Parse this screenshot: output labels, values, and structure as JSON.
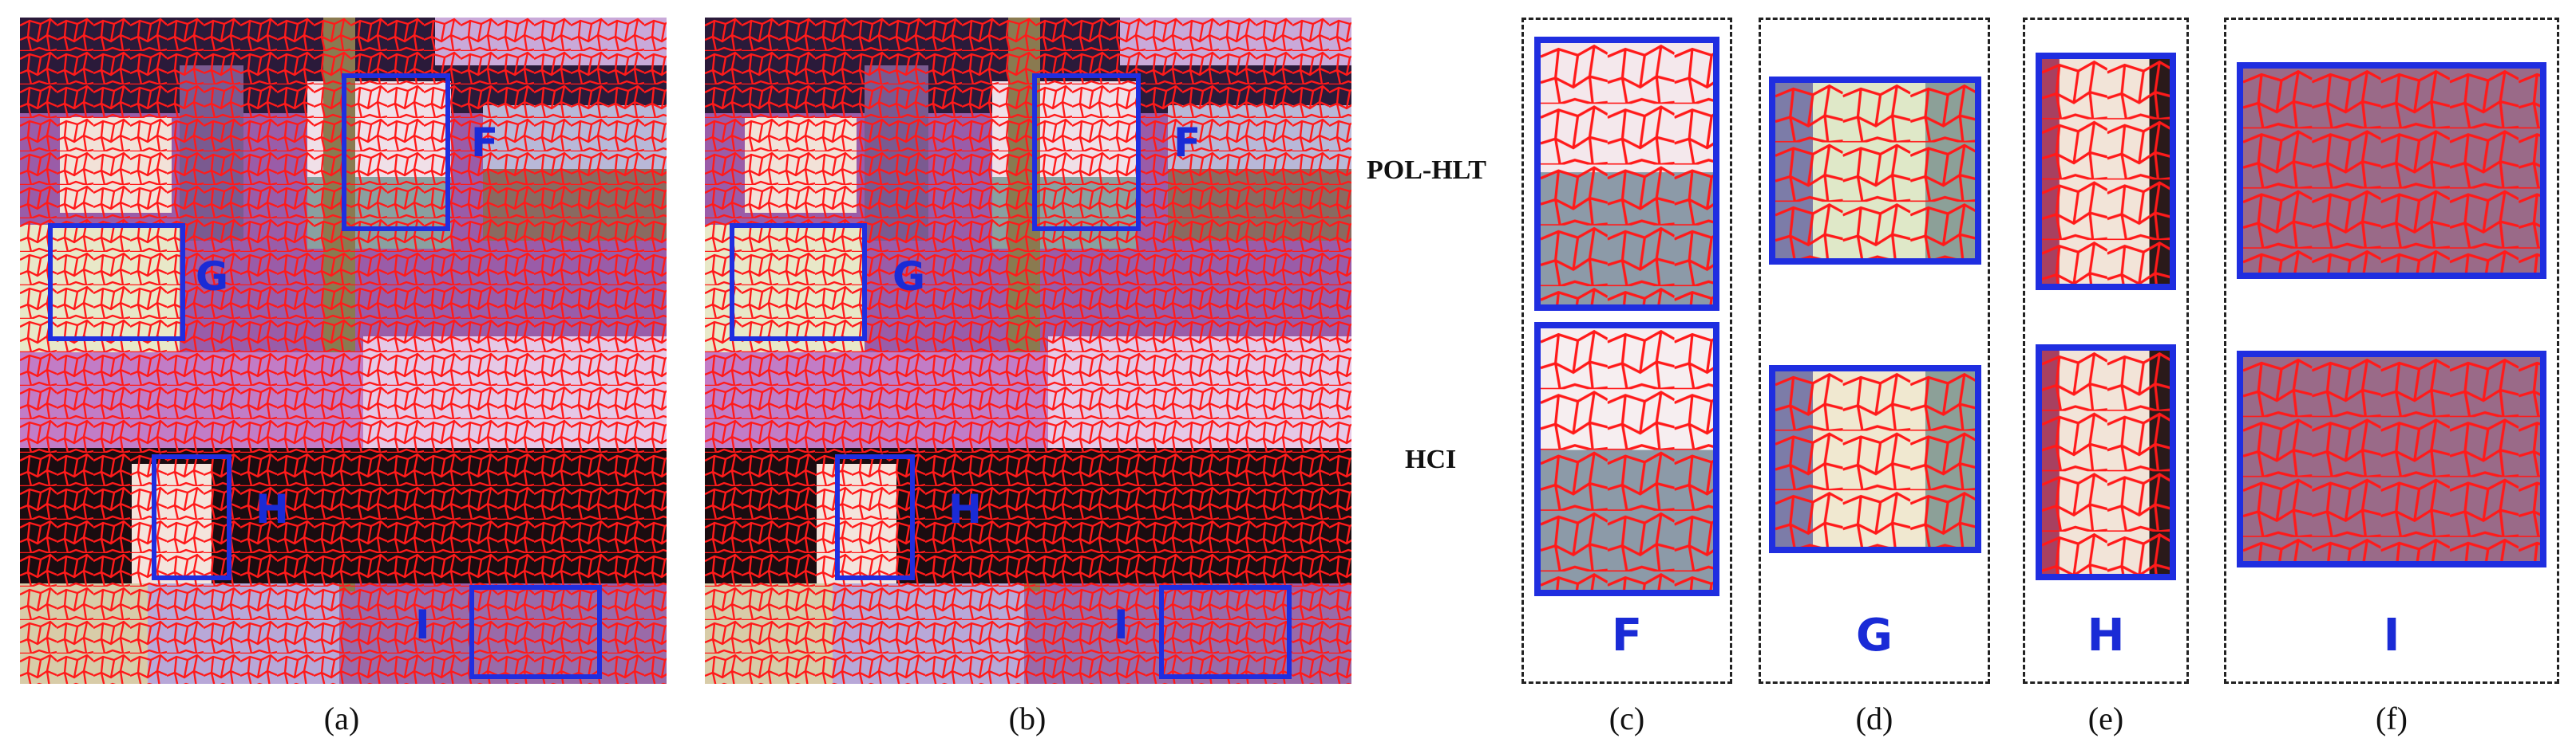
{
  "captions": [
    "(a)",
    "(b)",
    "(c)",
    "(d)",
    "(e)",
    "(f)"
  ],
  "roi_labels": [
    "F",
    "G",
    "H",
    "I"
  ],
  "row_labels": [
    "POL-HLT",
    "HCI"
  ],
  "group_labels": [
    "F",
    "G",
    "H",
    "I"
  ],
  "colors": {
    "boundary": "#ff1a1a",
    "roi": "#1f2ee0",
    "background": "#ffffff"
  }
}
